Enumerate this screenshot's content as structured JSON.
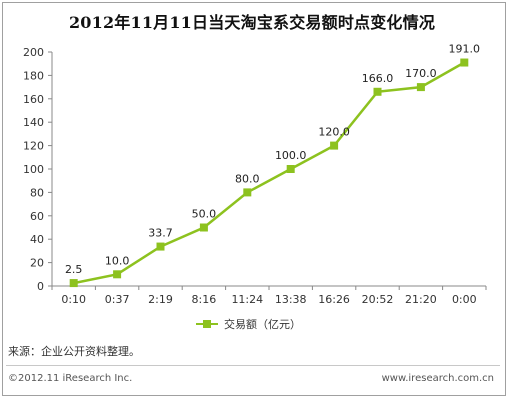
{
  "title": "2012年11月11日当天淘宝系交易额时点变化情况",
  "source": "来源：企业公开资料整理。",
  "footer": {
    "copyright": "©2012.11 iResearch Inc.",
    "website": "www.iresearch.com.cn"
  },
  "colors": {
    "series": "#8dc21f",
    "axis": "#888888"
  },
  "chart_data": {
    "type": "line",
    "title": "2012年11月11日当天淘宝系交易额时点变化情况",
    "categories": [
      "0:10",
      "0:37",
      "2:19",
      "8:16",
      "11:24",
      "13:38",
      "16:26",
      "20:52",
      "21:20",
      "0:00"
    ],
    "series": [
      {
        "name": "交易额（亿元）",
        "values": [
          2.5,
          10.0,
          33.7,
          50.0,
          80.0,
          100.0,
          120.0,
          166.0,
          170.0,
          191.0
        ],
        "labels": [
          "2.5",
          "10.0",
          "33.7",
          "50.0",
          "80.0",
          "100.0",
          "120.0",
          "166.0",
          "170.0",
          "191.0"
        ]
      }
    ],
    "yticks": [
      "0",
      "20",
      "40",
      "60",
      "80",
      "100",
      "120",
      "140",
      "160",
      "180",
      "200"
    ],
    "ylim": [
      0,
      200
    ],
    "xlabel": "",
    "ylabel": "",
    "grid": false,
    "legend": "bottom"
  }
}
